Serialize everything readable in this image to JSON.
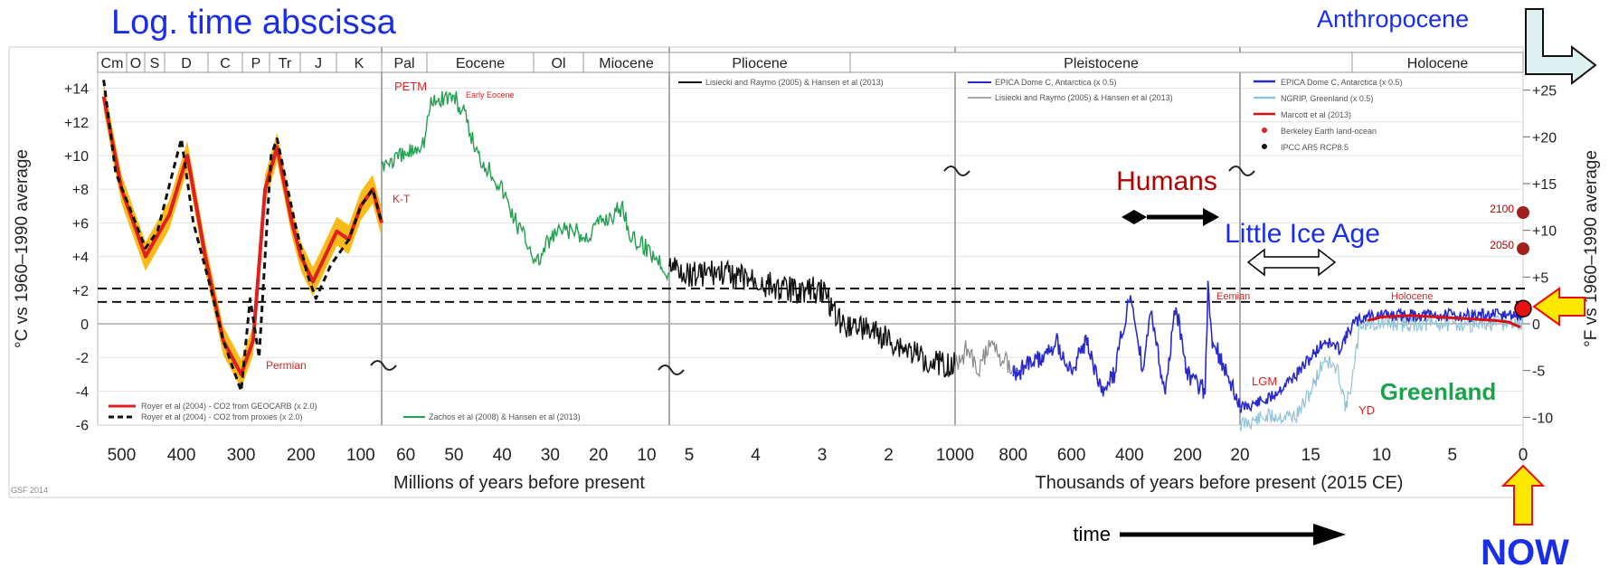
{
  "heading": "Log. time abscissa",
  "anthropocene_label": "Anthropocene",
  "humans_label": "Humans",
  "little_ice_age_label": "Little Ice Age",
  "greenland_label": "Greenland",
  "now_label": "NOW",
  "time_label": "time",
  "credit": "GSF 2014",
  "colors": {
    "blue_text": "#1a2ee8",
    "red_text": "#b00000",
    "green_text": "#1aa34a",
    "royer_red": "#e02020",
    "royer_band": "#f7b400",
    "zachos_green": "#22a050",
    "lisiecki_black": "#111111",
    "epica_blue": "#2a2acc",
    "ngrip_cyan": "#8fc4d8",
    "marcott_red": "#d81010",
    "arrow_yellow": "#ffe800",
    "arrow_red": "#e81010",
    "anthro_arrow": "#dff0f0"
  },
  "chart_data": {
    "type": "line",
    "ylabel_left": "°C vs 1960–1990 average",
    "ylabel_right": "°F vs 1960–1990 average",
    "y_ticks_left": [
      "+14",
      "+12",
      "+10",
      "+8",
      "+6",
      "+4",
      "+2",
      "0",
      "-2",
      "-4",
      "-6"
    ],
    "y_ticks_right": [
      "+25",
      "+20",
      "+15",
      "+10",
      "+5",
      "0",
      "-5",
      "-10"
    ],
    "ylim_celsius": [
      -6,
      15
    ],
    "reference_lines_celsius": [
      2.1,
      1.3
    ],
    "eras": [
      "Cm",
      "O",
      "S",
      "D",
      "C",
      "P",
      "Tr",
      "J",
      "K",
      "Pal",
      "Eocene",
      "Ol",
      "Miocene",
      "Pliocene",
      "Pleistocene",
      "Holocene"
    ],
    "panels": [
      {
        "xlabel": "Millions of years before present",
        "x_ticks": [
          "500",
          "400",
          "300",
          "200",
          "100"
        ],
        "xlim": [
          540,
          65
        ],
        "series": [
          {
            "name": "Royer et al (2004) - CO2 from GEOCARB (x 2.0)",
            "x": [
              530,
              500,
              460,
              420,
              390,
              360,
              330,
              300,
              280,
              260,
              240,
              215,
              200,
              180,
              160,
              140,
              120,
              100,
              80,
              65
            ],
            "y": [
              13.5,
              8,
              4,
              6.5,
              10,
              4,
              -1,
              -3,
              -1,
              8,
              10.5,
              6,
              4,
              2.5,
              4,
              5.5,
              5,
              7,
              8,
              6
            ]
          },
          {
            "name": "Royer et al (2004) - CO2 from proxies (x 2.0)",
            "x": [
              530,
              510,
              460,
              440,
              400,
              380,
              350,
              330,
              300,
              285,
              270,
              250,
              240,
              210,
              190,
              175,
              150,
              120,
              100,
              80,
              65
            ],
            "y": [
              14.5,
              9,
              4.5,
              5.5,
              11,
              6,
              2,
              -1,
              -4,
              1.5,
              -2,
              10,
              11,
              6,
              3,
              1.5,
              3.5,
              5,
              7,
              8,
              6
            ]
          }
        ],
        "annotations": [
          "Permian"
        ]
      },
      {
        "x_ticks": [
          "60",
          "50",
          "40",
          "30",
          "20",
          "10"
        ],
        "xlim": [
          65,
          5.3
        ],
        "series": [
          {
            "name": "Zachos et al (2008) & Hansen et al (2013)",
            "x": [
              65,
              60,
              56,
              55,
              52,
              50,
              48,
              45,
              42,
              40,
              37,
              34,
              33,
              30,
              28,
              25,
              23,
              20,
              17,
              15,
              13,
              10,
              8,
              5.3
            ],
            "y": [
              9.5,
              10,
              11,
              13,
              13.5,
              13.5,
              12.5,
              10,
              9,
              8,
              6,
              4.5,
              3.5,
              5,
              5.5,
              5.5,
              5,
              6,
              6.5,
              7,
              5,
              4.5,
              4,
              3
            ]
          }
        ],
        "annotations": [
          "PETM",
          "Early Eocene",
          "K-T"
        ]
      },
      {
        "x_ticks": [
          "5",
          "4",
          "3",
          "2"
        ],
        "xlim": [
          5.3,
          1
        ],
        "series": [
          {
            "name": "Lisiecki and Raymo (2005) & Hansen et al (2013)",
            "x": [
              5.3,
              5,
              4.5,
              4,
              3.5,
              3,
              2.7,
              2.5,
              2,
              1.5,
              1
            ],
            "y": [
              3.5,
              3,
              3,
              2.5,
              2,
              2,
              0,
              0,
              -1,
              -2,
              -2.5
            ]
          }
        ]
      },
      {
        "xlabel": "Thousands of years before present (2015 CE)",
        "x_ticks": [
          "1000",
          "800",
          "600",
          "400",
          "200",
          "20"
        ],
        "xlim": [
          1000,
          20
        ],
        "series": [
          {
            "name": "EPICA Dome C, Antarctica (x 0.5)",
            "x": [
              800,
              700,
              650,
              600,
              550,
              500,
              450,
              430,
              400,
              350,
              330,
              280,
              240,
              200,
              140,
              130,
              115,
              60,
              20
            ],
            "y": [
              -3,
              -2,
              -1,
              -3,
              -1,
              -4,
              -3,
              -1,
              1.5,
              -3,
              1,
              -4,
              1,
              -3,
              -4,
              2,
              -1,
              -3,
              -5
            ]
          },
          {
            "name": "Lisiecki and Raymo (2005) & Hansen et al (2013)",
            "x": [
              1000,
              960,
              920,
              880,
              840,
              800
            ],
            "y": [
              -2.5,
              -1.5,
              -3,
              -1,
              -2,
              -2.5
            ]
          }
        ],
        "annotations": [
          "Eemian"
        ]
      },
      {
        "x_ticks": [
          "15",
          "10",
          "5",
          "0"
        ],
        "xlim": [
          20,
          0
        ],
        "series": [
          {
            "name": "EPICA Dome C, Antarctica (x 0.5)",
            "x": [
              20,
              18,
              16,
              15,
              14,
              13,
              12,
              11,
              10,
              8,
              5,
              2,
              0
            ],
            "y": [
              -5,
              -4.5,
              -3,
              -2,
              -1,
              -1.5,
              0,
              0.5,
              0.5,
              0.5,
              0.5,
              0.5,
              0.5
            ]
          },
          {
            "name": "NGRIP, Greenland (x 0.5)",
            "x": [
              20,
              18,
              16,
              15,
              14,
              13,
              12.5,
              12,
              11.5,
              10,
              5,
              0
            ],
            "y": [
              -6,
              -5.5,
              -5.5,
              -4,
              -2,
              -3,
              -5,
              -3,
              0,
              0,
              0,
              0
            ]
          },
          {
            "name": "Marcott et al (2013)",
            "x": [
              11,
              10,
              8,
              6,
              4,
              2,
              1,
              0.2
            ],
            "y": [
              0.2,
              0.4,
              0.5,
              0.4,
              0.3,
              0.2,
              0.1,
              -0.2
            ]
          },
          {
            "name": "Berkeley Earth land-ocean",
            "x": [
              0.1
            ],
            "y": [
              0
            ]
          },
          {
            "name": "IPCC AR5 RCP8.5",
            "x": [
              -0.035,
              -0.085
            ],
            "y": [
              2.4,
              4.6
            ]
          }
        ],
        "annotations": [
          "Holocene",
          "LGM",
          "YD",
          "2050",
          "2100"
        ]
      }
    ]
  }
}
